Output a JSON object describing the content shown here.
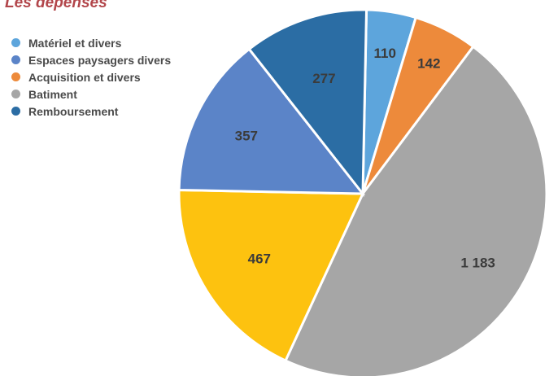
{
  "title": "Les dépenses",
  "chart_data": {
    "type": "pie",
    "title": "Les dépenses",
    "legend_position": "top-left",
    "start_slice": "Matériel et divers",
    "slices": [
      {
        "name": "Matériel et divers",
        "value": 110,
        "label": "110",
        "color": "#5da5dc"
      },
      {
        "name": "Acquisition et divers",
        "value": 142,
        "label": "142",
        "color": "#ed8a3b"
      },
      {
        "name": "Batiment",
        "value": 1183,
        "label": "1 183",
        "color": "#a6a6a6"
      },
      {
        "name": "",
        "value": 467,
        "label": "467",
        "color": "#fdc20f"
      },
      {
        "name": "Espaces paysagers divers",
        "value": 357,
        "label": "357",
        "color": "#5b84c8"
      },
      {
        "name": "Remboursement",
        "value": 277,
        "label": "277",
        "color": "#2b6da4"
      }
    ],
    "legend": [
      {
        "label": "Matériel et divers",
        "color": "#5da5dc"
      },
      {
        "label": "Espaces paysagers divers",
        "color": "#5b84c8"
      },
      {
        "label": "Acquisition et divers",
        "color": "#ed8a3b"
      },
      {
        "label": "Batiment",
        "color": "#a6a6a6"
      },
      {
        "label": "Remboursement",
        "color": "#2b6da4"
      }
    ]
  }
}
